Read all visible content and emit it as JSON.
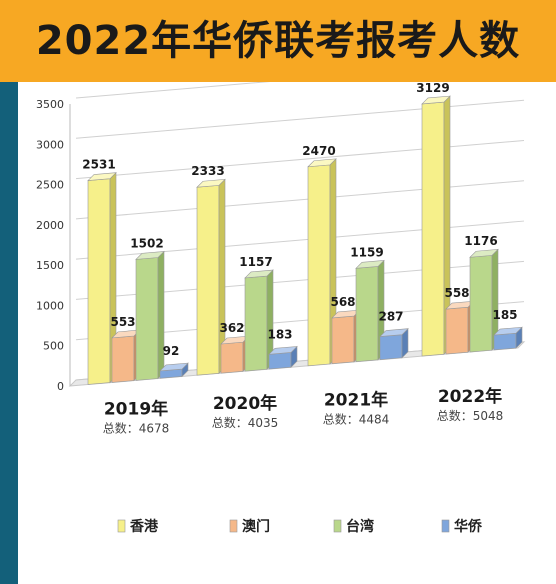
{
  "title": "2022年华侨联考报考人数",
  "chart_data": {
    "type": "bar",
    "title": "2022年华侨联考报考人数",
    "categories": [
      "2019年",
      "2020年",
      "2021年",
      "2022年"
    ],
    "totals": [
      "总数：4678",
      "总数：4035",
      "总数：4484",
      "总数：5048"
    ],
    "series": [
      {
        "name": "香港",
        "values": [
          2531,
          2333,
          2470,
          3129
        ],
        "color": "#f6f08a",
        "side": "#c9c35a",
        "top": "#fbf8c2"
      },
      {
        "name": "澳门",
        "values": [
          553,
          362,
          568,
          558
        ],
        "color": "#f5b889",
        "side": "#cf8d5c",
        "top": "#fad9bf"
      },
      {
        "name": "台湾",
        "values": [
          1502,
          1157,
          1159,
          1176
        ],
        "color": "#b9d78b",
        "side": "#8fb062",
        "top": "#dcebc3"
      },
      {
        "name": "华侨",
        "values": [
          92,
          183,
          287,
          185
        ],
        "color": "#7fa6dc",
        "side": "#5a80b6",
        "top": "#b7cdee"
      }
    ],
    "yticks": [
      0,
      500,
      1000,
      1500,
      2000,
      2500,
      3000,
      3500
    ],
    "ylim": [
      0,
      3500
    ],
    "grid": true,
    "legend": "bottom"
  }
}
